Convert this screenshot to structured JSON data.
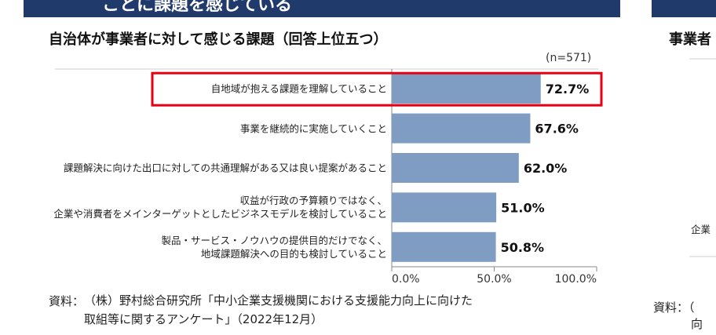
{
  "header": {
    "title": "ことに課題を感じている"
  },
  "chart_data": {
    "type": "hbar",
    "title": "自治体が事業者に対して感じる課題（回答上位五つ）",
    "note": "(n=571)",
    "categories": [
      "自地域が抱える課題を理解していること",
      "事業を継続的に実施していくこと",
      "課題解決に向けた出口に対しての共通理解がある又は良い提案があること",
      "収益が行政の予算頼りではなく、\n企業や消費者をメインターゲットとしたビジネスモデルを検討していること",
      "製品・サービス・ノウハウの提供目的だけでなく、\n地域課題解決への目的も検討していること"
    ],
    "values": [
      72.7,
      67.6,
      62.0,
      51.0,
      50.8
    ],
    "value_labels": [
      "72.7%",
      "67.6%",
      "62.0%",
      "51.0%",
      "50.8%"
    ],
    "color": "#7f9dc3",
    "highlight": 0,
    "highlight_color": "#e60012",
    "xlim": [
      0,
      100
    ],
    "xticks": [
      {
        "value": 0,
        "label": "0.0%"
      },
      {
        "value": 50,
        "label": "50.0%"
      },
      {
        "value": 100,
        "label": "100.0%"
      }
    ]
  },
  "source": {
    "label": "資料：",
    "lines": [
      "（株）野村総合研究所「中小企業支援機関における支援能力向上に向けた",
      "取組等に関するアンケート」（2022年12月）"
    ]
  },
  "right_panel": {
    "title": "事業者",
    "label": "企業",
    "source": "資料：（",
    "source_line2": "向"
  }
}
